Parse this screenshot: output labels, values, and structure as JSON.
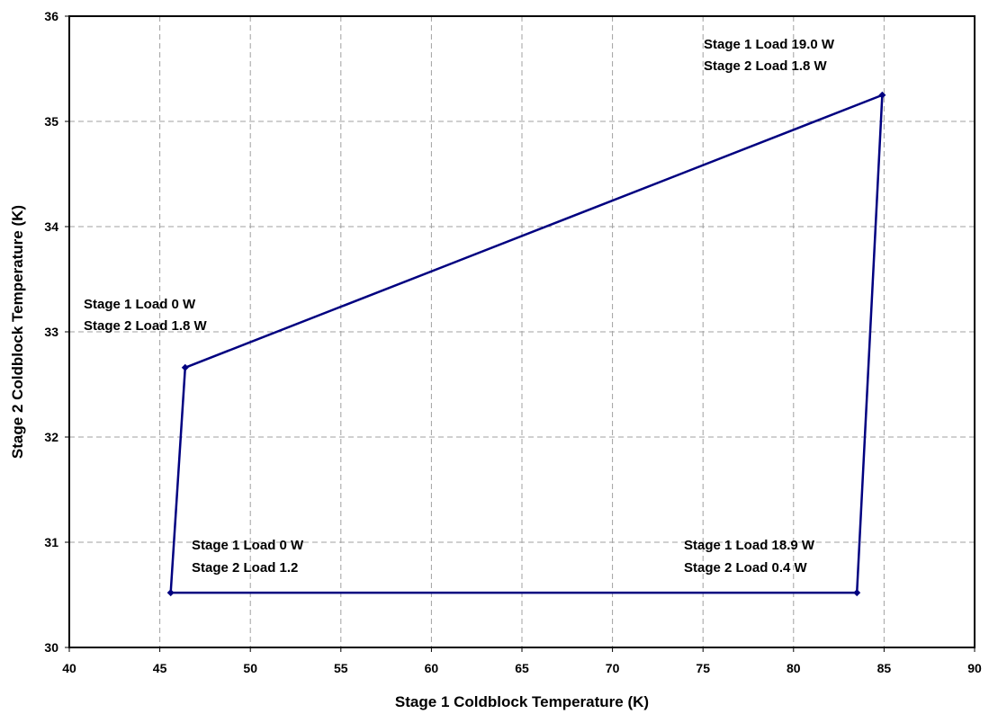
{
  "chart_data": {
    "type": "line",
    "title": "",
    "xlabel": "Stage 1 Coldblock Temperature (K)",
    "ylabel": "Stage 2 Coldblock Temperature (K)",
    "xlim": [
      40,
      90
    ],
    "ylim": [
      30,
      36
    ],
    "xticks": [
      "40",
      "45",
      "50",
      "55",
      "60",
      "65",
      "70",
      "75",
      "80",
      "85",
      "90"
    ],
    "yticks": [
      "30",
      "31",
      "32",
      "33",
      "34",
      "35",
      "36"
    ],
    "grid": true,
    "line_color": "#000080",
    "series": [
      {
        "points": [
          {
            "x": 45.6,
            "y": 30.52
          },
          {
            "x": 46.4,
            "y": 32.66
          },
          {
            "x": 84.9,
            "y": 35.25
          },
          {
            "x": 83.5,
            "y": 30.52
          },
          {
            "x": 45.6,
            "y": 30.52
          }
        ]
      }
    ],
    "annotations": [
      {
        "line1": "Stage 1 Load 19.0 W",
        "line2": "Stage 2 Load 1.8 W",
        "x": 84.9,
        "y": 35.25
      },
      {
        "line1": "Stage 1 Load 0 W",
        "line2": "Stage 2 Load 1.8 W",
        "x": 46.4,
        "y": 32.66
      },
      {
        "line1": "Stage 1 Load 0 W",
        "line2": "Stage 2 Load 1.2",
        "x": 45.6,
        "y": 30.52
      },
      {
        "line1": "Stage 1 Load 18.9 W",
        "line2": "Stage 2 Load 0.4 W",
        "x": 83.5,
        "y": 30.52
      }
    ]
  }
}
